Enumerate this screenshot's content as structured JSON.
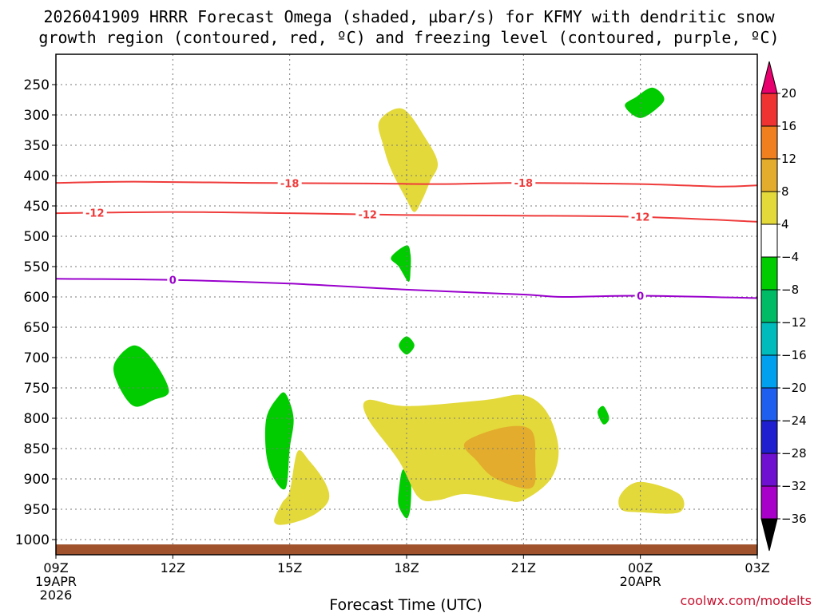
{
  "chart_data": {
    "type": "heatmap",
    "title_line1": "2026041909 HRRR Forecast Omega (shaded, µbar/s) for KFMY with dendritic snow",
    "title_line2": "growth region (contoured, red, ºC) and freezing level (contoured, purple, ºC)",
    "xlabel": "Forecast Time (UTC)",
    "credit": "coolwx.com/modelts",
    "x_range": [
      0,
      18
    ],
    "y_range_hpa": [
      200,
      1025
    ],
    "x_ticks": [
      {
        "x": 0,
        "label": "09Z",
        "sub1": "19APR",
        "sub2": "2026"
      },
      {
        "x": 3,
        "label": "12Z",
        "sub1": "",
        "sub2": ""
      },
      {
        "x": 6,
        "label": "15Z",
        "sub1": "",
        "sub2": ""
      },
      {
        "x": 9,
        "label": "18Z",
        "sub1": "",
        "sub2": ""
      },
      {
        "x": 12,
        "label": "21Z",
        "sub1": "",
        "sub2": ""
      },
      {
        "x": 15,
        "label": "00Z",
        "sub1": "20APR",
        "sub2": ""
      },
      {
        "x": 18,
        "label": "03Z",
        "sub1": "",
        "sub2": ""
      }
    ],
    "y_ticks": [
      250,
      300,
      350,
      400,
      450,
      500,
      550,
      600,
      650,
      700,
      750,
      800,
      850,
      900,
      950,
      1000
    ],
    "colorbar": {
      "levels": [
        20,
        16,
        12,
        8,
        4,
        -4,
        -8,
        -12,
        -16,
        -20,
        -24,
        -28,
        -32,
        -36
      ],
      "colors": [
        "#e8006e",
        "#ef3232",
        "#ef7f1f",
        "#e3ac2c",
        "#e3d93a",
        "#ffffff",
        "#00cc00",
        "#00bb66",
        "#00bbbb",
        "#00a0ee",
        "#1f5fef",
        "#1f1fcf",
        "#6f0fcf",
        "#a900c9",
        "#a0a0a0",
        "#000000"
      ]
    },
    "contours": [
      {
        "name": "dgz-minus18",
        "value": -18,
        "label": "-18",
        "color": "#ef3b3b",
        "points": [
          [
            0,
            412
          ],
          [
            2,
            410
          ],
          [
            5,
            412
          ],
          [
            8,
            413
          ],
          [
            10,
            414
          ],
          [
            12,
            412
          ],
          [
            15,
            414
          ],
          [
            17,
            418
          ],
          [
            18,
            416
          ]
        ],
        "label_x": [
          6,
          12
        ]
      },
      {
        "name": "dgz-minus12",
        "value": -12,
        "label": "-12",
        "color": "#ef3b3b",
        "points": [
          [
            0,
            462
          ],
          [
            3,
            460
          ],
          [
            6,
            462
          ],
          [
            9,
            465
          ],
          [
            12,
            466
          ],
          [
            15,
            468
          ],
          [
            18,
            476
          ]
        ],
        "label_x": [
          1,
          8,
          15
        ]
      },
      {
        "name": "freezing-level",
        "value": 0,
        "label": "0",
        "color": "#9900cc",
        "points": [
          [
            0,
            570
          ],
          [
            3,
            572
          ],
          [
            6,
            578
          ],
          [
            9,
            588
          ],
          [
            12,
            596
          ],
          [
            13,
            600
          ],
          [
            15,
            598
          ],
          [
            18,
            602
          ]
        ],
        "label_x": [
          3,
          15
        ]
      }
    ],
    "omega_regions": [
      {
        "name": "green-260hpa",
        "value": -6,
        "color": "#00cc00",
        "points": [
          [
            14.9,
            270
          ],
          [
            15.3,
            255
          ],
          [
            15.6,
            270
          ],
          [
            15.5,
            285
          ],
          [
            15,
            305
          ],
          [
            14.6,
            285
          ]
        ]
      },
      {
        "name": "green-540hpa",
        "value": -6,
        "color": "#00cc00",
        "points": [
          [
            8.6,
            535
          ],
          [
            9,
            515
          ],
          [
            9.1,
            530
          ],
          [
            9.1,
            555
          ],
          [
            9.05,
            575
          ],
          [
            8.8,
            550
          ]
        ]
      },
      {
        "name": "green-680hpa",
        "value": -6,
        "color": "#00cc00",
        "points": [
          [
            9,
            665
          ],
          [
            9.2,
            680
          ],
          [
            9,
            695
          ],
          [
            8.8,
            680
          ]
        ]
      },
      {
        "name": "green-725hpa",
        "value": -6,
        "color": "#00cc00",
        "points": [
          [
            1.5,
            710
          ],
          [
            2,
            680
          ],
          [
            2.5,
            705
          ],
          [
            2.9,
            755
          ],
          [
            2.5,
            770
          ],
          [
            2,
            780
          ],
          [
            1.6,
            745
          ]
        ]
      },
      {
        "name": "green-820hpa",
        "value": -6,
        "color": "#00cc00",
        "points": [
          [
            5.4,
            800
          ],
          [
            5.7,
            765
          ],
          [
            5.9,
            760
          ],
          [
            6.1,
            800
          ],
          [
            6,
            850
          ],
          [
            5.9,
            915
          ],
          [
            5.6,
            900
          ],
          [
            5.4,
            860
          ]
        ]
      },
      {
        "name": "green-795hpa",
        "value": -6,
        "color": "#00cc00",
        "points": [
          [
            13.9,
            790
          ],
          [
            14.05,
            780
          ],
          [
            14.2,
            800
          ],
          [
            14.05,
            810
          ]
        ]
      },
      {
        "name": "green-920hpa",
        "value": -6,
        "color": "#00cc00",
        "points": [
          [
            8.8,
            920
          ],
          [
            8.9,
            885
          ],
          [
            9.1,
            900
          ],
          [
            9.1,
            945
          ],
          [
            9.0,
            965
          ],
          [
            8.8,
            945
          ]
        ]
      },
      {
        "name": "yellow-360hpa",
        "value": 6,
        "color": "#e3d93a",
        "points": [
          [
            8.3,
            310
          ],
          [
            8.9,
            290
          ],
          [
            9.5,
            340
          ],
          [
            9.8,
            380
          ],
          [
            9.6,
            410
          ],
          [
            9.4,
            440
          ],
          [
            9.2,
            460
          ],
          [
            9.0,
            440
          ],
          [
            8.6,
            390
          ],
          [
            8.4,
            350
          ]
        ]
      },
      {
        "name": "yellow-880hpa",
        "value": 6,
        "color": "#e3d93a",
        "points": [
          [
            9,
            780
          ],
          [
            11,
            770
          ],
          [
            12,
            762
          ],
          [
            12.6,
            790
          ],
          [
            12.9,
            850
          ],
          [
            12.7,
            900
          ],
          [
            12.0,
            935
          ],
          [
            11.5,
            935
          ],
          [
            10.5,
            925
          ],
          [
            9.8,
            935
          ],
          [
            9.3,
            930
          ],
          [
            8.8,
            870
          ],
          [
            8,
            800
          ],
          [
            8,
            770
          ]
        ]
      },
      {
        "name": "orange-855hpa",
        "value": 10,
        "color": "#e3ac2c",
        "points": [
          [
            10.5,
            840
          ],
          [
            11.5,
            815
          ],
          [
            12.2,
            820
          ],
          [
            12.3,
            870
          ],
          [
            12.2,
            915
          ],
          [
            11.3,
            900
          ],
          [
            10.8,
            870
          ]
        ]
      },
      {
        "name": "yellow-905hpa",
        "value": 6,
        "color": "#e3d93a",
        "points": [
          [
            6,
            920
          ],
          [
            6.2,
            855
          ],
          [
            6.5,
            870
          ],
          [
            6.9,
            905
          ],
          [
            7,
            935
          ],
          [
            6.6,
            960
          ],
          [
            5.9,
            975
          ],
          [
            5.6,
            970
          ],
          [
            5.8,
            940
          ]
        ]
      },
      {
        "name": "yellow-935hpa",
        "value": 6,
        "color": "#e3d93a",
        "points": [
          [
            14.5,
            925
          ],
          [
            15,
            905
          ],
          [
            16,
            925
          ],
          [
            16,
            955
          ],
          [
            15,
            955
          ],
          [
            14.5,
            950
          ]
        ]
      }
    ],
    "surface_band": {
      "from_hpa": 1008,
      "to_hpa": 1025,
      "color": "#a0522d"
    }
  }
}
